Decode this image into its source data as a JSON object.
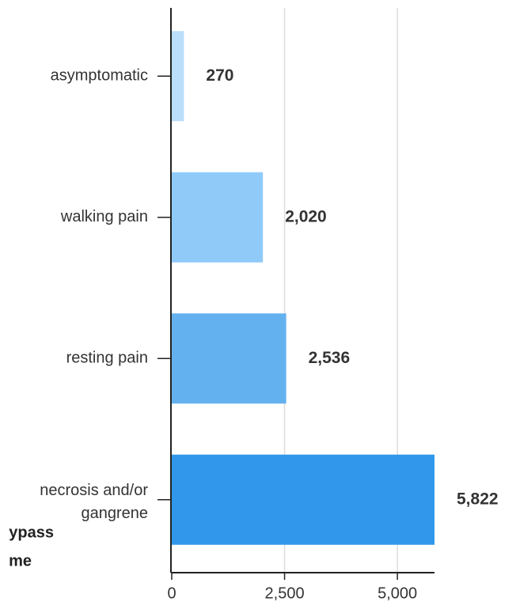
{
  "chart_data": {
    "type": "bar",
    "orientation": "horizontal",
    "categories": [
      "asymptomatic",
      "walking pain",
      "resting pain",
      "necrosis and/or gangrene"
    ],
    "values": [
      270,
      2020,
      2536,
      5822
    ],
    "value_labels": [
      "270",
      "2,020",
      "2,536",
      "5,822"
    ],
    "colors": [
      "#bbdefb",
      "#90caf9",
      "#64b1f0",
      "#3097ea"
    ],
    "axis_title_fragments": [
      "ypass",
      "me"
    ],
    "xlim": [
      0,
      5822
    ],
    "xticks": [
      0,
      {
        "value": 2500,
        "label": "2,500"
      },
      {
        "value": 5000,
        "label": "5,000"
      }
    ],
    "grid": true
  }
}
